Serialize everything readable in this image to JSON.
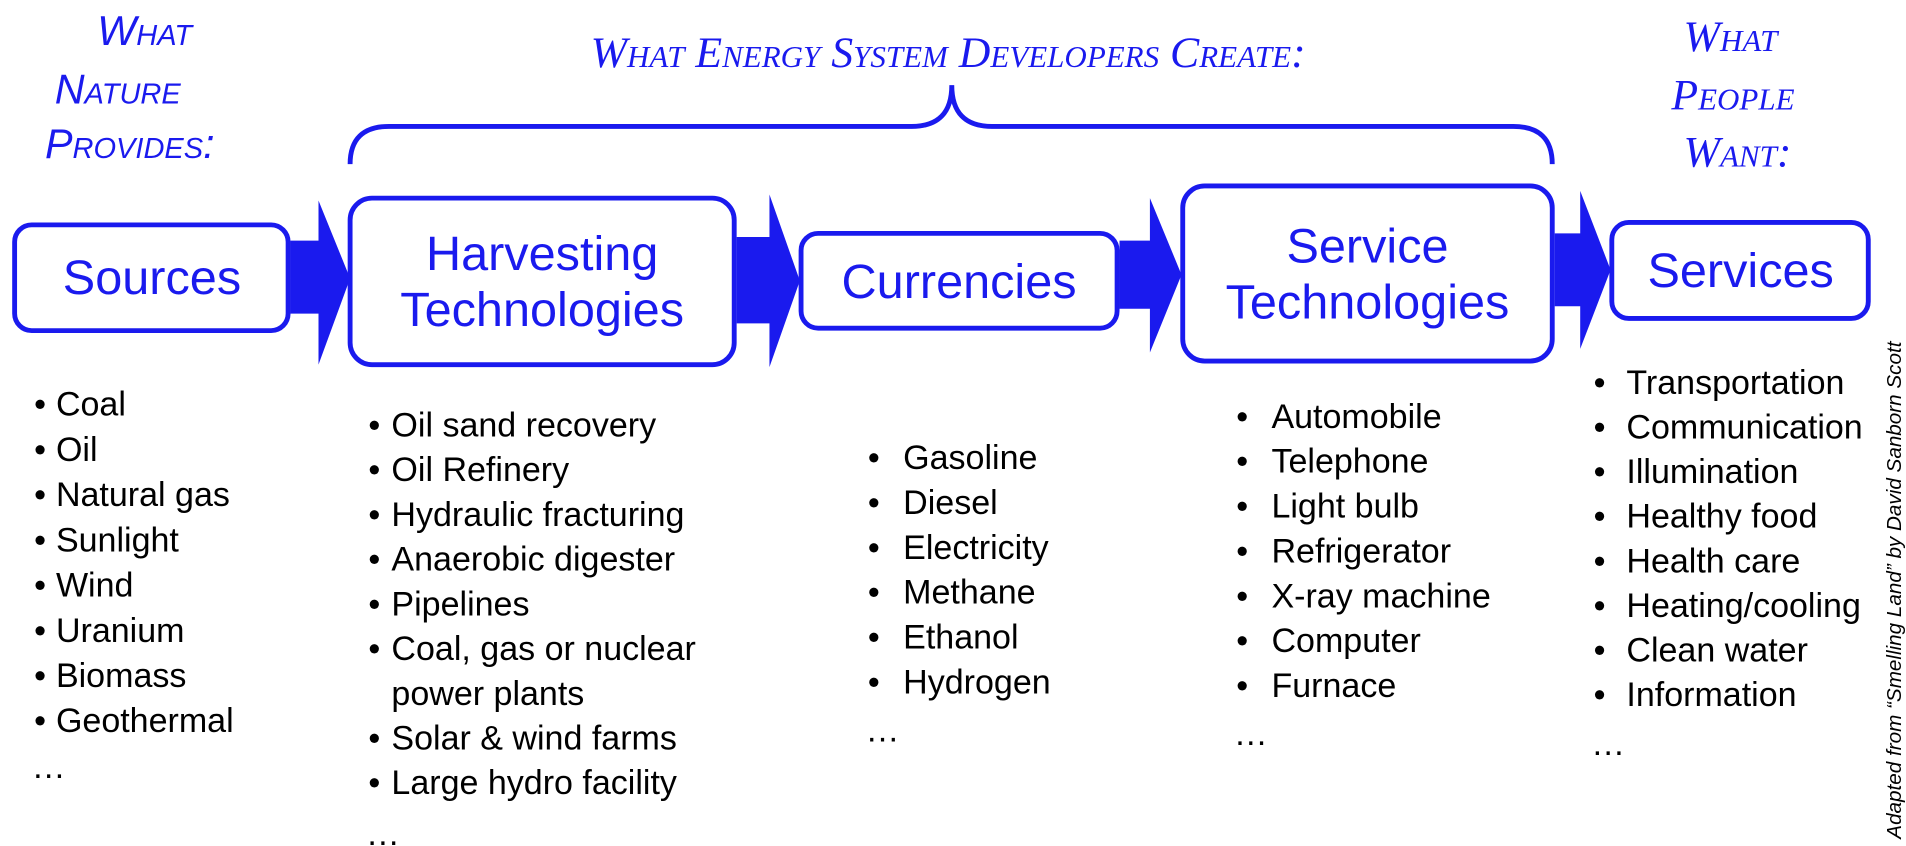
{
  "headers": {
    "left": [
      "What",
      "Nature",
      "Provides:"
    ],
    "middle": "What Energy System Developers Create:",
    "right": [
      "What",
      "People",
      "Want:"
    ]
  },
  "boxes": [
    [
      "Sources"
    ],
    [
      "Harvesting",
      "Technologies"
    ],
    [
      "Currencies"
    ],
    [
      "Service",
      "Technologies"
    ],
    [
      "Services"
    ]
  ],
  "lists": [
    {
      "items": [
        "Coal",
        "Oil",
        "Natural gas",
        "Sunlight",
        "Wind",
        "Uranium",
        "Biomass",
        "Geothermal"
      ],
      "more": "…"
    },
    {
      "items": [
        "Oil sand recovery",
        "Oil Refinery",
        "Hydraulic fracturing",
        "Anaerobic digester",
        "Pipelines",
        [
          "Coal, gas or nuclear",
          "power plants"
        ],
        "Solar & wind farms",
        "Large hydro facility"
      ],
      "more": "…"
    },
    {
      "items": [
        "Gasoline",
        "Diesel",
        "Electricity",
        "Methane",
        "Ethanol",
        "Hydrogen"
      ],
      "more": "…"
    },
    {
      "items": [
        "Automobile",
        "Telephone",
        "Light bulb",
        "Refrigerator",
        "X-ray machine",
        "Computer",
        "Furnace"
      ],
      "more": "…"
    },
    {
      "items": [
        "Transportation",
        "Communication",
        "Illumination",
        "Healthy food",
        "Health care",
        "Heating/cooling",
        "Clean water",
        "Information"
      ],
      "more": "…"
    }
  ],
  "credit": "Adapted from “Smelling Land” by David Sanborn Scott"
}
